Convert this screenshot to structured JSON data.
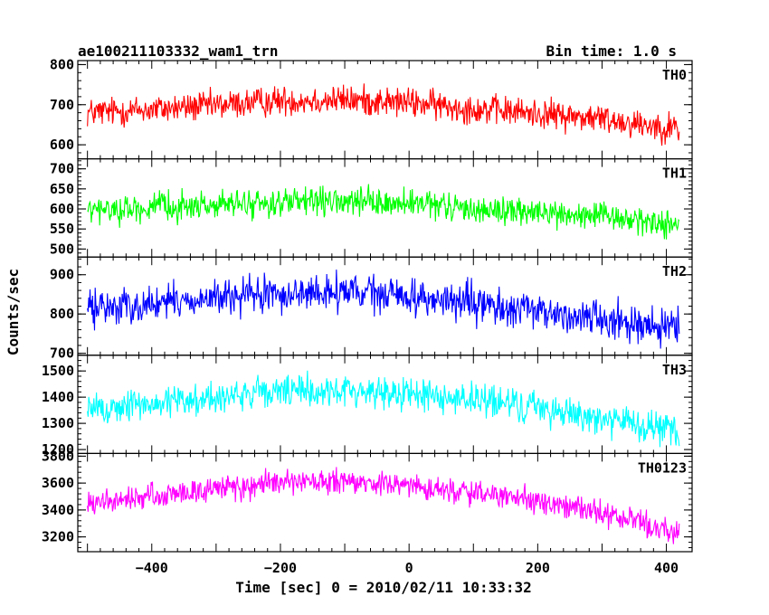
{
  "chart_data": {
    "type": "line",
    "title": "ae100211103332_wam1_trn",
    "bin_time_label": "Bin time: 1.0 s",
    "xlabel": "Time [sec] 0 = 2010/02/11 10:33:32",
    "ylabel": "Counts/sec",
    "xlim": [
      -515,
      440
    ],
    "x_ticks": [
      -400,
      -200,
      0,
      200,
      400
    ],
    "x_tick_labels": [
      "−400",
      "−200",
      "0",
      "200",
      "400"
    ],
    "x_data_range": [
      -500,
      420
    ],
    "bin_size": 1.0,
    "grid": false,
    "panels": [
      {
        "name": "TH0",
        "color": "#ff0000",
        "ylim": [
          565,
          810
        ],
        "y_ticks": [
          600,
          700,
          800
        ],
        "y_tick_labels": [
          "600",
          "700",
          "800"
        ],
        "trend_x": [
          -500,
          -400,
          -300,
          -200,
          -100,
          0,
          100,
          200,
          300,
          420
        ],
        "trend_y": [
          680,
          688,
          698,
          710,
          712,
          705,
          690,
          678,
          665,
          640
        ],
        "noise_amplitude": 32
      },
      {
        "name": "TH1",
        "color": "#00ff00",
        "ylim": [
          480,
          725
        ],
        "y_ticks": [
          500,
          550,
          600,
          650,
          700
        ],
        "y_tick_labels": [
          "500",
          "550",
          "600",
          "650",
          "700"
        ],
        "trend_x": [
          -500,
          -400,
          -300,
          -200,
          -100,
          0,
          100,
          200,
          300,
          420
        ],
        "trend_y": [
          595,
          603,
          610,
          615,
          617,
          612,
          600,
          590,
          580,
          560
        ],
        "noise_amplitude": 30
      },
      {
        "name": "TH2",
        "color": "#0000ff",
        "ylim": [
          695,
          945
        ],
        "y_ticks": [
          700,
          800,
          900
        ],
        "y_tick_labels": [
          "700",
          "800",
          "900"
        ],
        "trend_x": [
          -500,
          -400,
          -300,
          -200,
          -100,
          0,
          100,
          200,
          300,
          420
        ],
        "trend_y": [
          815,
          825,
          840,
          850,
          855,
          845,
          825,
          805,
          790,
          760
        ],
        "noise_amplitude": 40
      },
      {
        "name": "TH3",
        "color": "#00ffff",
        "ylim": [
          1185,
          1560
        ],
        "y_ticks": [
          1200,
          1300,
          1400,
          1500
        ],
        "y_tick_labels": [
          "1200",
          "1300",
          "1400",
          "1500"
        ],
        "trend_x": [
          -500,
          -400,
          -300,
          -200,
          -100,
          0,
          100,
          200,
          300,
          420
        ],
        "trend_y": [
          1350,
          1375,
          1400,
          1420,
          1425,
          1415,
          1390,
          1360,
          1320,
          1260
        ],
        "noise_amplitude": 55
      },
      {
        "name": "TH0123",
        "color": "#ff00ff",
        "ylim": [
          3090,
          3820
        ],
        "y_ticks": [
          3200,
          3400,
          3600,
          3800
        ],
        "y_tick_labels": [
          "3200",
          "3400",
          "3600",
          "3800"
        ],
        "trend_x": [
          -500,
          -400,
          -300,
          -200,
          -100,
          0,
          100,
          200,
          300,
          420
        ],
        "trend_y": [
          3440,
          3500,
          3560,
          3600,
          3605,
          3580,
          3530,
          3460,
          3380,
          3230
        ],
        "noise_amplitude": 80
      }
    ]
  }
}
